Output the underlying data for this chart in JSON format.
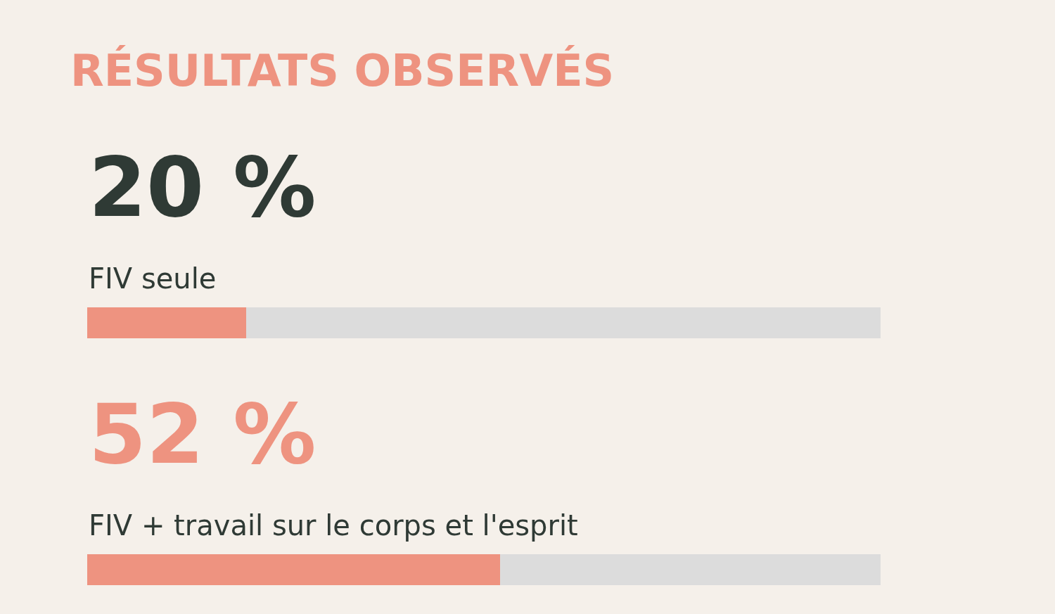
{
  "chart_data": {
    "type": "bar",
    "orientation": "horizontal",
    "title": "RÉSULTATS OBSERVÉS",
    "categories": [
      "FIV seule",
      "FIV + travail sur le corps et l'esprit"
    ],
    "values": [
      20,
      52
    ],
    "value_labels": [
      "20 %",
      "52 %"
    ],
    "colors": [
      "#ee9380",
      "#ee9380"
    ],
    "xlim": [
      0,
      100
    ],
    "tick_labels": false,
    "grid": false,
    "legend": false
  }
}
